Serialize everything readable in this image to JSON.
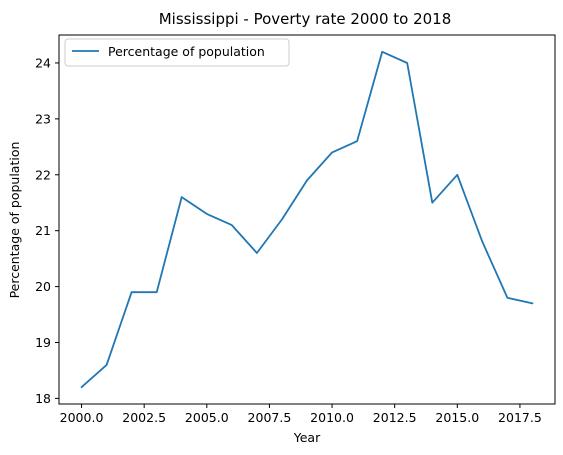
{
  "chart_data": {
    "type": "line",
    "title": "Mississippi - Poverty rate 2000 to 2018",
    "xlabel": "Year",
    "ylabel": "Percentage of population",
    "xlim": [
      1999.1,
      2018.9
    ],
    "ylim": [
      17.9,
      24.5
    ],
    "x_ticks": [
      2000.0,
      2002.5,
      2005.0,
      2007.5,
      2010.0,
      2012.5,
      2015.0,
      2017.5
    ],
    "x_tick_labels": [
      "2000.0",
      "2002.5",
      "2005.0",
      "2007.5",
      "2010.0",
      "2012.5",
      "2015.0",
      "2017.5"
    ],
    "y_ticks": [
      18,
      19,
      20,
      21,
      22,
      23,
      24
    ],
    "y_tick_labels": [
      "18",
      "19",
      "20",
      "21",
      "22",
      "23",
      "24"
    ],
    "grid": false,
    "legend_position": "top-left",
    "series": [
      {
        "name": "Percentage of population",
        "color": "#1f77b4",
        "x": [
          2000,
          2001,
          2002,
          2003,
          2004,
          2005,
          2006,
          2007,
          2008,
          2009,
          2010,
          2011,
          2012,
          2013,
          2014,
          2015,
          2016,
          2017,
          2018
        ],
        "values": [
          18.2,
          18.6,
          19.9,
          19.9,
          21.6,
          21.3,
          21.1,
          20.6,
          21.2,
          21.9,
          22.4,
          22.6,
          24.2,
          24.0,
          21.5,
          22.0,
          20.8,
          19.8,
          19.7
        ]
      }
    ]
  }
}
